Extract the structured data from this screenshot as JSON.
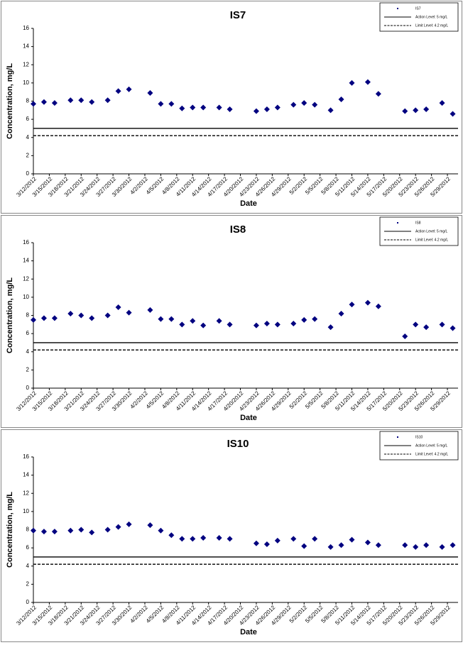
{
  "chart_data": [
    {
      "type": "scatter",
      "title": "IS7",
      "xlabel": "Date",
      "ylabel": "Concentration, mg/L",
      "xlim": [
        "3/12/2012",
        "5/31/2012"
      ],
      "ylim": [
        0,
        16
      ],
      "yticks": [
        0,
        2,
        4,
        6,
        8,
        10,
        12,
        14,
        16
      ],
      "xticks": [
        "3/12/2012",
        "3/15/2012",
        "3/18/2012",
        "3/21/2012",
        "3/24/2012",
        "3/27/2012",
        "3/30/2012",
        "4/2/2012",
        "4/5/2012",
        "4/8/2012",
        "4/11/2012",
        "4/14/2012",
        "4/17/2012",
        "4/20/2012",
        "4/23/2012",
        "4/26/2012",
        "4/29/2012",
        "5/2/2012",
        "5/5/2012",
        "5/8/2012",
        "5/11/2012",
        "5/14/2012",
        "5/17/2012",
        "5/20/2012",
        "5/23/2012",
        "5/26/2012",
        "5/29/2012"
      ],
      "series": [
        {
          "name": "IS7",
          "color": "#000080",
          "x": [
            "3/12/2012",
            "3/14/2012",
            "3/16/2012",
            "3/19/2012",
            "3/21/2012",
            "3/23/2012",
            "3/26/2012",
            "3/28/2012",
            "3/30/2012",
            "4/3/2012",
            "4/5/2012",
            "4/7/2012",
            "4/9/2012",
            "4/11/2012",
            "4/13/2012",
            "4/16/2012",
            "4/18/2012",
            "4/23/2012",
            "4/25/2012",
            "4/27/2012",
            "4/30/2012",
            "5/2/2012",
            "5/4/2012",
            "5/7/2012",
            "5/9/2012",
            "5/11/2012",
            "5/14/2012",
            "5/16/2012",
            "5/21/2012",
            "5/23/2012",
            "5/25/2012",
            "5/28/2012",
            "5/30/2012"
          ],
          "values": [
            7.7,
            7.9,
            7.8,
            8.1,
            8.1,
            7.9,
            8.1,
            9.1,
            9.3,
            8.9,
            7.7,
            7.7,
            7.2,
            7.3,
            7.3,
            7.3,
            7.1,
            6.9,
            7.1,
            7.3,
            7.6,
            7.8,
            7.6,
            7.0,
            8.2,
            10.0,
            10.1,
            8.8,
            6.9,
            7.0,
            7.1,
            7.8,
            6.6
          ]
        }
      ],
      "reference_lines": [
        {
          "name": "Action Level: 5 mg/L",
          "value": 5,
          "style": "solid"
        },
        {
          "name": "Limit Level: 4.2 mg/L",
          "value": 4.2,
          "style": "dashed"
        }
      ]
    },
    {
      "type": "scatter",
      "title": "IS8",
      "xlabel": "Date",
      "ylabel": "Concentration, mg/L",
      "xlim": [
        "3/12/2012",
        "5/31/2012"
      ],
      "ylim": [
        0,
        16
      ],
      "yticks": [
        0,
        2,
        4,
        6,
        8,
        10,
        12,
        14,
        16
      ],
      "xticks": [
        "3/12/2012",
        "3/15/2012",
        "3/18/2012",
        "3/21/2012",
        "3/24/2012",
        "3/27/2012",
        "3/30/2012",
        "4/2/2012",
        "4/5/2012",
        "4/8/2012",
        "4/11/2012",
        "4/14/2012",
        "4/17/2012",
        "4/20/2012",
        "4/23/2012",
        "4/26/2012",
        "4/29/2012",
        "5/2/2012",
        "5/5/2012",
        "5/8/2012",
        "5/11/2012",
        "5/14/2012",
        "5/17/2012",
        "5/20/2012",
        "5/23/2012",
        "5/26/2012",
        "5/29/2012"
      ],
      "series": [
        {
          "name": "IS8",
          "color": "#000080",
          "x": [
            "3/12/2012",
            "3/14/2012",
            "3/16/2012",
            "3/19/2012",
            "3/21/2012",
            "3/23/2012",
            "3/26/2012",
            "3/28/2012",
            "3/30/2012",
            "4/3/2012",
            "4/5/2012",
            "4/7/2012",
            "4/9/2012",
            "4/11/2012",
            "4/13/2012",
            "4/16/2012",
            "4/18/2012",
            "4/23/2012",
            "4/25/2012",
            "4/27/2012",
            "4/30/2012",
            "5/2/2012",
            "5/4/2012",
            "5/7/2012",
            "5/9/2012",
            "5/11/2012",
            "5/14/2012",
            "5/16/2012",
            "5/21/2012",
            "5/23/2012",
            "5/25/2012",
            "5/28/2012",
            "5/30/2012"
          ],
          "values": [
            7.5,
            7.7,
            7.7,
            8.2,
            8.0,
            7.7,
            8.0,
            8.9,
            8.3,
            8.6,
            7.6,
            7.6,
            7.0,
            7.4,
            6.9,
            7.4,
            7.0,
            6.9,
            7.1,
            7.0,
            7.1,
            7.5,
            7.6,
            6.7,
            8.2,
            9.2,
            9.4,
            9.0,
            5.7,
            7.0,
            6.7,
            7.0,
            6.6
          ]
        }
      ],
      "reference_lines": [
        {
          "name": "Action Level: 5 mg/L",
          "value": 5,
          "style": "solid"
        },
        {
          "name": "Limit Level: 4.2 mg/L",
          "value": 4.2,
          "style": "dashed"
        }
      ]
    },
    {
      "type": "scatter",
      "title": "IS10",
      "xlabel": "Date",
      "ylabel": "Concentration, mg/L",
      "xlim": [
        "3/12/2012",
        "5/31/2012"
      ],
      "ylim": [
        0,
        16
      ],
      "yticks": [
        0,
        2,
        4,
        6,
        8,
        10,
        12,
        14,
        16
      ],
      "xticks": [
        "3/12/2012",
        "3/15/2012",
        "3/18/2012",
        "3/21/2012",
        "3/24/2012",
        "3/27/2012",
        "3/30/2012",
        "4/2/2012",
        "4/5/2012",
        "4/8/2012",
        "4/11/2012",
        "4/14/2012",
        "4/17/2012",
        "4/20/2012",
        "4/23/2012",
        "4/26/2012",
        "4/29/2012",
        "5/2/2012",
        "5/5/2012",
        "5/8/2012",
        "5/11/2012",
        "5/14/2012",
        "5/17/2012",
        "5/20/2012",
        "5/23/2012",
        "5/26/2012",
        "5/29/2012"
      ],
      "series": [
        {
          "name": "IS10",
          "color": "#000080",
          "x": [
            "3/12/2012",
            "3/14/2012",
            "3/16/2012",
            "3/19/2012",
            "3/21/2012",
            "3/23/2012",
            "3/26/2012",
            "3/28/2012",
            "3/30/2012",
            "4/3/2012",
            "4/5/2012",
            "4/7/2012",
            "4/9/2012",
            "4/11/2012",
            "4/13/2012",
            "4/16/2012",
            "4/18/2012",
            "4/23/2012",
            "4/25/2012",
            "4/27/2012",
            "4/30/2012",
            "5/2/2012",
            "5/4/2012",
            "5/7/2012",
            "5/9/2012",
            "5/11/2012",
            "5/14/2012",
            "5/16/2012",
            "5/21/2012",
            "5/23/2012",
            "5/25/2012",
            "5/28/2012",
            "5/30/2012"
          ],
          "values": [
            7.9,
            7.8,
            7.8,
            7.9,
            8.0,
            7.7,
            8.0,
            8.3,
            8.6,
            8.5,
            7.9,
            7.4,
            7.0,
            7.0,
            7.1,
            7.1,
            7.0,
            6.5,
            6.4,
            6.8,
            7.0,
            6.2,
            7.0,
            6.1,
            6.3,
            6.9,
            6.6,
            6.3,
            6.3,
            6.1,
            6.3,
            6.1,
            6.3
          ]
        }
      ],
      "reference_lines": [
        {
          "name": "Action Level: 5 mg/L",
          "value": 5,
          "style": "solid"
        },
        {
          "name": "Limit Level: 4.2 mg/L",
          "value": 4.2,
          "style": "dashed"
        }
      ]
    }
  ]
}
